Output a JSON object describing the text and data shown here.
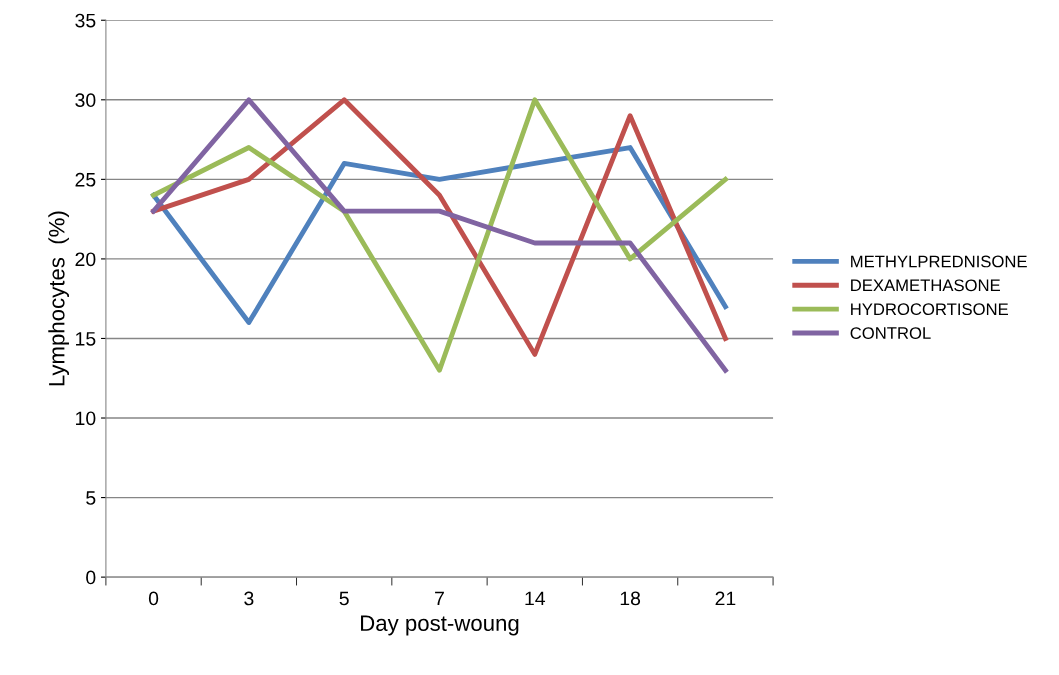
{
  "chart_data": {
    "type": "line",
    "xlabel": "Day post-woung",
    "ylabel": "Lymphocytes  (%)",
    "categories": [
      "0",
      "3",
      "5",
      "7",
      "14",
      "18",
      "21"
    ],
    "series": [
      {
        "name": "METHYLPREDNISONE",
        "color": "#4f81bd",
        "values": [
          24,
          16,
          26,
          25,
          26,
          27,
          17
        ]
      },
      {
        "name": "DEXAMETHASONE",
        "color": "#c0504d",
        "values": [
          23,
          25,
          30,
          24,
          14,
          29,
          15
        ]
      },
      {
        "name": "HYDROCORTISONE",
        "color": "#9bbb59",
        "values": [
          24,
          27,
          23,
          13,
          30,
          20,
          25
        ]
      },
      {
        "name": "CONTROL",
        "color": "#8064a2",
        "values": [
          23,
          30,
          23,
          23,
          21,
          21,
          13
        ]
      }
    ],
    "ylim": [
      0,
      35
    ],
    "yticks": [
      0,
      5,
      10,
      15,
      20,
      25,
      30,
      35
    ],
    "grid": "y",
    "legend": "right",
    "marker": "none",
    "line_style": "solid"
  }
}
